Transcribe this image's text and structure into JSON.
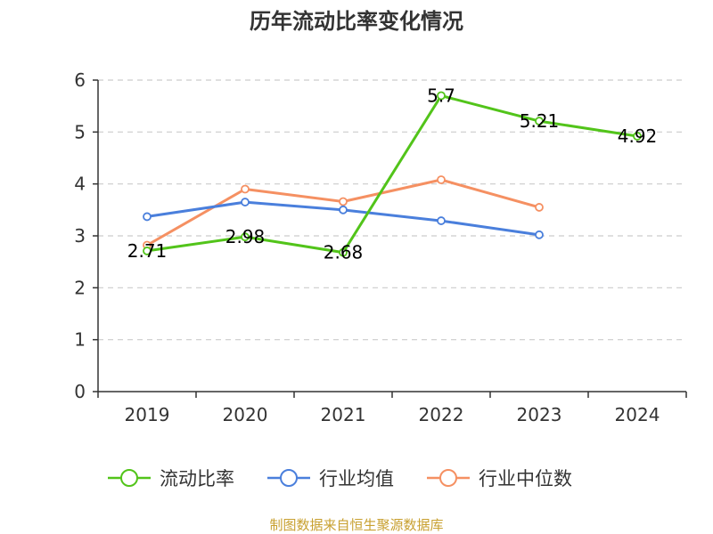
{
  "chart_data": {
    "type": "line",
    "title": "历年流动比率变化情况",
    "categories": [
      "2019",
      "2020",
      "2021",
      "2022",
      "2023",
      "2024"
    ],
    "ylim": [
      0,
      6
    ],
    "yticks": [
      "0",
      "1",
      "2",
      "3",
      "4",
      "5",
      "6"
    ],
    "grid": true,
    "legend_position": "bottom",
    "series": [
      {
        "name": "流动比率",
        "color": "#52c41a",
        "values": [
          2.71,
          2.98,
          2.68,
          5.7,
          5.21,
          4.92
        ],
        "labels": [
          "2.71",
          "2.98",
          "2.68",
          "5.7",
          "5.21",
          "4.92"
        ]
      },
      {
        "name": "行业均值",
        "color": "#4a7fdc",
        "values": [
          3.37,
          3.65,
          3.5,
          3.29,
          3.02,
          null
        ]
      },
      {
        "name": "行业中位数",
        "color": "#f59062",
        "values": [
          2.82,
          3.9,
          3.66,
          4.08,
          3.55,
          null
        ]
      }
    ],
    "source": "制图数据来自恒生聚源数据库"
  }
}
